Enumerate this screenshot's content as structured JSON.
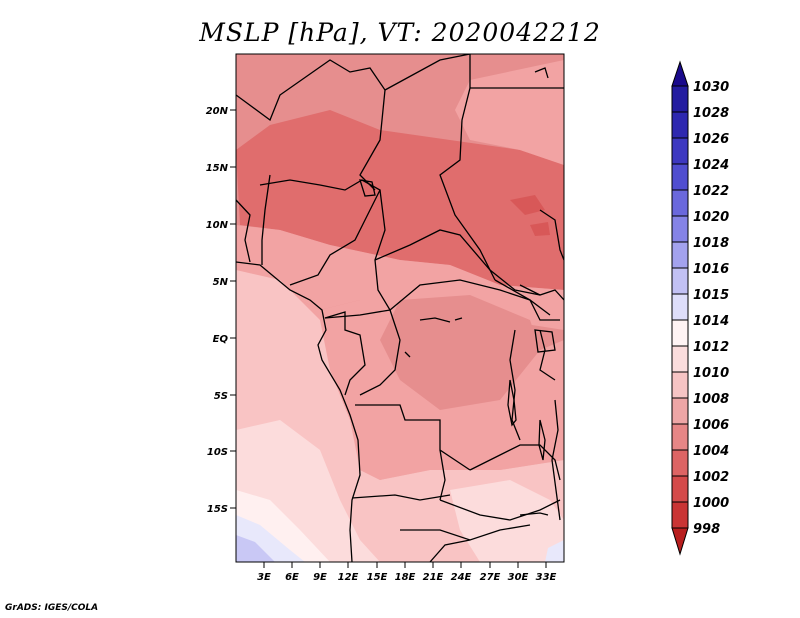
{
  "title": "MSLP [hPa], VT: 2020042212",
  "footer": "GrADS: IGES/COLA",
  "map": {
    "lat_labels": [
      "20N",
      "15N",
      "10N",
      "5N",
      "EQ",
      "5S",
      "10S",
      "15S"
    ],
    "lon_labels": [
      "3E",
      "6E",
      "9E",
      "12E",
      "15E",
      "18E",
      "21E",
      "24E",
      "27E",
      "30E",
      "33E"
    ]
  },
  "colorbar": {
    "labels": [
      "1030",
      "1028",
      "1026",
      "1024",
      "1022",
      "1020",
      "1018",
      "1016",
      "1015",
      "1014",
      "1012",
      "1010",
      "1008",
      "1006",
      "1004",
      "1002",
      "1000",
      "998"
    ],
    "colors": {
      "top_arrow": "#1a0a8c",
      "segments": [
        "#241ca0",
        "#2e28b0",
        "#3d38c0",
        "#504ed0",
        "#6a68dc",
        "#8583e6",
        "#a3a2ee",
        "#c2c1f4",
        "#dedefa",
        "#fff4f4",
        "#fadcdc",
        "#f6c4c4",
        "#eea6a6",
        "#e68686",
        "#dd6464",
        "#d44a4a",
        "#c93434"
      ],
      "bottom_arrow": "#b81e1e"
    }
  },
  "palette": {
    "p1008": "#e68e8e",
    "p1006": "#e06d6d",
    "p1010": "#f2a3a3",
    "p1012": "#f9c4c4",
    "p1014": "#fcdcdc",
    "p1015": "#fff0f0",
    "p1016": "#e8e8fb",
    "p1018": "#c9c8f5",
    "p1003": "#d85858"
  }
}
